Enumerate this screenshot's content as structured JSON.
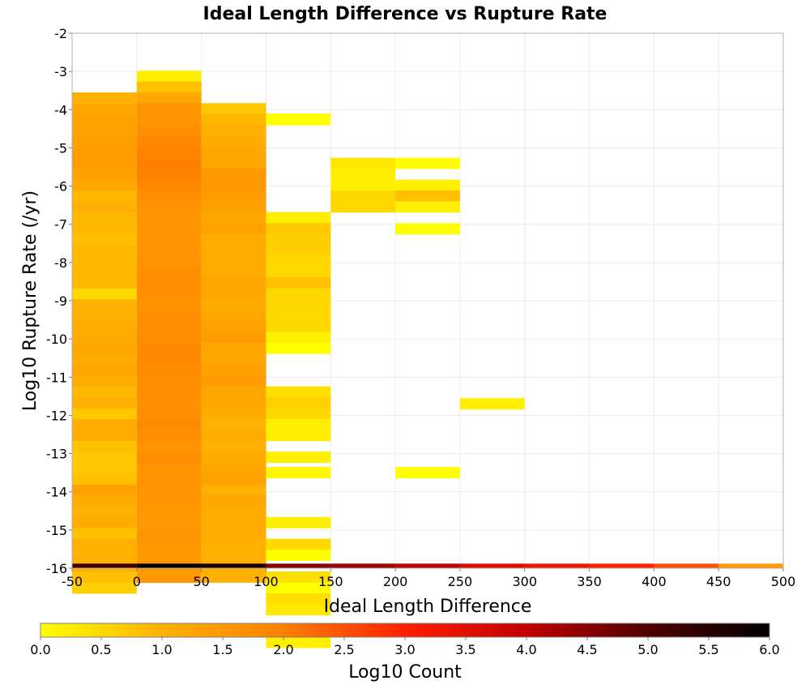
{
  "chart_data": {
    "type": "heatmap",
    "title": "Ideal Length Difference vs Rupture Rate",
    "xlabel": "Ideal Length Difference",
    "ylabel": "Log10 Rupture Rate (/yr)",
    "colorbar_label": "Log10 Count",
    "xlim": [
      -50,
      500
    ],
    "ylim": [
      -16,
      -2
    ],
    "x_ticks": [
      -50,
      0,
      50,
      100,
      150,
      200,
      250,
      300,
      350,
      400,
      450,
      500
    ],
    "y_ticks": [
      -16,
      -15,
      -14,
      -13,
      -12,
      -11,
      -10,
      -9,
      -8,
      -7,
      -6,
      -5,
      -4,
      -3,
      -2
    ],
    "colorbar_range": [
      0.0,
      6.0
    ],
    "colorbar_ticks": [
      "0.0",
      "0.5",
      "1.0",
      "1.5",
      "2.0",
      "2.5",
      "3.0",
      "3.5",
      "4.0",
      "4.5",
      "5.0",
      "5.5",
      "6.0"
    ],
    "colorscale": [
      "#ffff00",
      "#ffb000",
      "#ff8000",
      "#ff2000",
      "#c00000",
      "#500000",
      "#000000"
    ],
    "grid": true,
    "x_bin_width": 50,
    "y_bin_height": 0.285,
    "columns": [
      {
        "x": -25,
        "y_top": -3.55,
        "values": [
          1.0,
          1.2,
          1.3,
          1.3,
          1.35,
          1.4,
          1.4,
          1.3,
          1.2,
          0.9,
          1.0,
          0.9,
          0.9,
          0.8,
          0.9,
          0.9,
          0.9,
          0.9,
          0.5,
          1.0,
          1.0,
          1.1,
          1.1,
          1.2,
          1.1,
          1.2,
          1.1,
          0.9,
          1.0,
          0.7,
          1.1,
          1.1,
          0.8,
          0.7,
          0.7,
          0.8,
          1.3,
          1.1,
          1.0,
          1.1,
          0.8,
          1.0,
          1.0,
          1.0,
          0.8,
          0.6
        ]
      },
      {
        "x": 25,
        "y_top": -2.98,
        "values": [
          0.2,
          0.8,
          1.2,
          1.55,
          1.6,
          1.7,
          1.8,
          1.9,
          2.0,
          1.95,
          1.8,
          1.7,
          1.6,
          1.6,
          1.55,
          1.55,
          1.6,
          1.6,
          1.7,
          1.7,
          1.65,
          1.6,
          1.7,
          1.7,
          1.7,
          1.8,
          1.8,
          1.75,
          1.7,
          1.7,
          1.65,
          1.7,
          1.75,
          1.7,
          1.6,
          1.7,
          1.6,
          1.6,
          1.6,
          1.55,
          1.5,
          1.5,
          1.6,
          1.5,
          1.45,
          1.5,
          1.5
        ]
      },
      {
        "x": 75,
        "y_top": -3.83,
        "values": [
          0.7,
          0.9,
          1.0,
          1.1,
          1.2,
          1.2,
          1.5,
          1.5,
          1.4,
          1.3,
          1.2,
          1.3,
          1.1,
          1.1,
          1.1,
          1.1,
          1.2,
          1.2,
          1.1,
          1.2,
          1.3,
          1.4,
          1.2,
          1.2,
          1.3,
          1.4,
          1.2,
          1.2,
          1.1,
          1.0,
          1.1,
          1.0,
          1.1,
          1.2,
          1.3,
          1.0,
          1.2,
          1.1,
          1.1,
          1.1,
          1.0,
          1.0,
          1.0,
          1.0
        ]
      },
      {
        "x": 125,
        "y_top": -4.4,
        "values": [
          null,
          null,
          null,
          null,
          null,
          null,
          null,
          null,
          0.2,
          0.7,
          0.6,
          0.6,
          0.5,
          0.5,
          0.8,
          0.5,
          0.5,
          0.5,
          0.5,
          0.2,
          0.0,
          null,
          null,
          null,
          0.4,
          0.6,
          0.5,
          0.2,
          0.2,
          null,
          0.2,
          null,
          null,
          null,
          null,
          null,
          0.2,
          null,
          0.5,
          0.0,
          null,
          0.4,
          0.0,
          0.4,
          0.3,
          null,
          0.4,
          0.2,
          null,
          null,
          null,
          null,
          null,
          null,
          null
        ]
      },
      {
        "x": 175,
        "y_top": -5.26,
        "values": [
          0.3,
          0.2,
          0.2,
          0.5,
          0.5
        ]
      },
      {
        "x": 225,
        "y_top": -5.26,
        "values": [
          0.0,
          null,
          0.2,
          0.8,
          0.2,
          null,
          0.0
        ]
      },
      {
        "x": 275,
        "y_top": -11.55,
        "values": [
          0.2
        ]
      }
    ],
    "extra_cells": [
      {
        "x": 125,
        "y_top": -4.1,
        "y_bottom": -4.4,
        "value": 0.0
      },
      {
        "x": 225,
        "y_top": -13.35,
        "y_bottom": -13.64,
        "value": 0.0
      },
      {
        "x": 125,
        "y_top": -13.35,
        "y_bottom": -13.64,
        "value": 0.1
      }
    ],
    "bottom_row": {
      "y_top": -15.88,
      "y_bottom": -16.0,
      "x": [
        -25,
        25,
        75,
        125,
        175,
        225,
        275,
        325,
        375,
        425,
        475
      ],
      "values": [
        5.2,
        5.9,
        5.6,
        4.5,
        4.3,
        4.0,
        3.6,
        3.3,
        3.0,
        2.5,
        1.4
      ]
    }
  }
}
